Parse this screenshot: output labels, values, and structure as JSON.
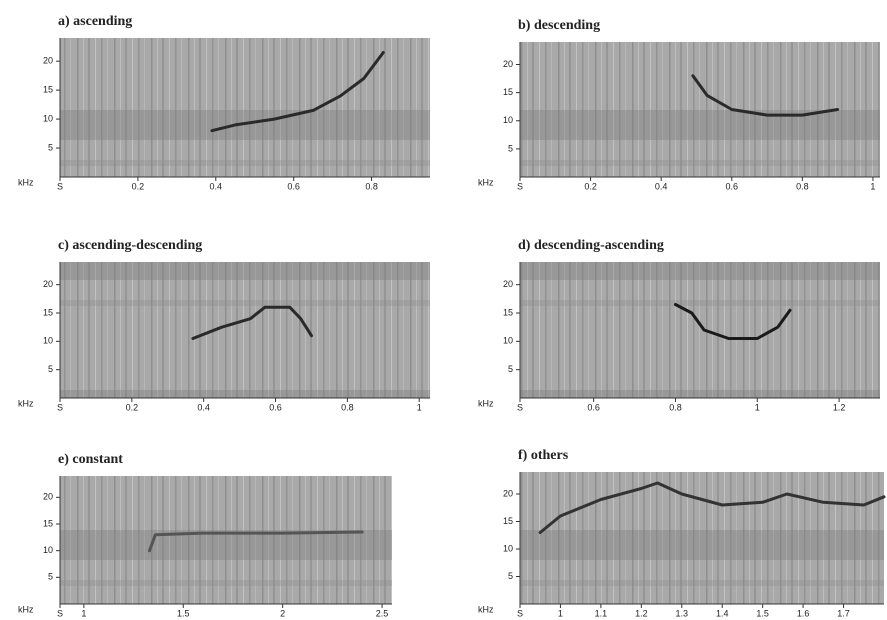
{
  "chart_data": [
    {
      "type": "line",
      "title": "a) ascending",
      "ylabel": "kHz",
      "color": "#2a2a2a",
      "xlim": [
        0,
        0.95
      ],
      "ylim": [
        0,
        24
      ],
      "xticks": [
        {
          "value": 0,
          "label": "S"
        },
        0.2,
        0.4,
        0.6,
        0.8
      ],
      "yticks": [
        5,
        10,
        15,
        20
      ],
      "x": [
        0.39,
        0.45,
        0.55,
        0.65,
        0.72,
        0.78,
        0.83
      ],
      "values": [
        8,
        9,
        10,
        11.5,
        14,
        17,
        21.5
      ]
    },
    {
      "type": "line",
      "title": "b) descending",
      "ylabel": "kHz",
      "color": "#2a2a2a",
      "xlim": [
        0,
        1.02
      ],
      "ylim": [
        0,
        24
      ],
      "xticks": [
        {
          "value": 0,
          "label": "S"
        },
        0.2,
        0.4,
        0.6,
        0.8,
        1
      ],
      "yticks": [
        5,
        10,
        15,
        20
      ],
      "x": [
        0.49,
        0.53,
        0.6,
        0.7,
        0.8,
        0.9
      ],
      "values": [
        18,
        14.5,
        12,
        11,
        11,
        12
      ]
    },
    {
      "type": "line",
      "title": "c) ascending-descending",
      "ylabel": "kHz",
      "color": "#2a2a2a",
      "xlim": [
        0,
        1.03
      ],
      "ylim": [
        0,
        24
      ],
      "xticks": [
        {
          "value": 0,
          "label": "S"
        },
        0.2,
        0.4,
        0.6,
        0.8,
        1
      ],
      "yticks": [
        5,
        10,
        15,
        20
      ],
      "x": [
        0.37,
        0.45,
        0.53,
        0.57,
        0.64,
        0.67,
        0.7
      ],
      "values": [
        10.5,
        12.5,
        14,
        16,
        16,
        14,
        11
      ]
    },
    {
      "type": "line",
      "title": "d) descending-ascending",
      "ylabel": "kHz",
      "color": "#1a1a1a",
      "xlim": [
        0.42,
        1.3
      ],
      "ylim": [
        0,
        24
      ],
      "xticks": [
        {
          "value": 0.42,
          "label": "S"
        },
        0.6,
        0.8,
        1,
        1.2
      ],
      "yticks": [
        5,
        10,
        15,
        20
      ],
      "x": [
        0.8,
        0.84,
        0.87,
        0.93,
        1.0,
        1.05,
        1.08
      ],
      "values": [
        16.5,
        15,
        12,
        10.5,
        10.5,
        12.5,
        15.5
      ]
    },
    {
      "type": "line",
      "title": "e) constant",
      "ylabel": "kHz",
      "color": "#555555",
      "xlim": [
        0.88,
        2.55
      ],
      "ylim": [
        0,
        24
      ],
      "xticks": [
        {
          "value": 0.88,
          "label": "S"
        },
        1,
        1.5,
        2,
        2.5
      ],
      "yticks": [
        5,
        10,
        15,
        20
      ],
      "x": [
        1.33,
        1.36,
        1.6,
        2.0,
        2.4
      ],
      "values": [
        10,
        13,
        13.3,
        13.3,
        13.5
      ]
    },
    {
      "type": "line",
      "title": "f) others",
      "ylabel": "kHz",
      "color": "#333333",
      "xlim": [
        0.9,
        1.8
      ],
      "ylim": [
        0,
        24
      ],
      "xticks": [
        {
          "value": 0.9,
          "label": "S"
        },
        1,
        1.1,
        1.2,
        1.3,
        1.4,
        1.5,
        1.6,
        1.7
      ],
      "yticks": [
        5,
        10,
        15,
        20
      ],
      "x": [
        0.95,
        1.0,
        1.1,
        1.2,
        1.24,
        1.3,
        1.4,
        1.5,
        1.56,
        1.65,
        1.75,
        1.8
      ],
      "values": [
        13,
        16,
        19,
        21,
        22,
        20,
        18,
        18.5,
        20,
        18.5,
        18,
        19.5
      ]
    }
  ]
}
